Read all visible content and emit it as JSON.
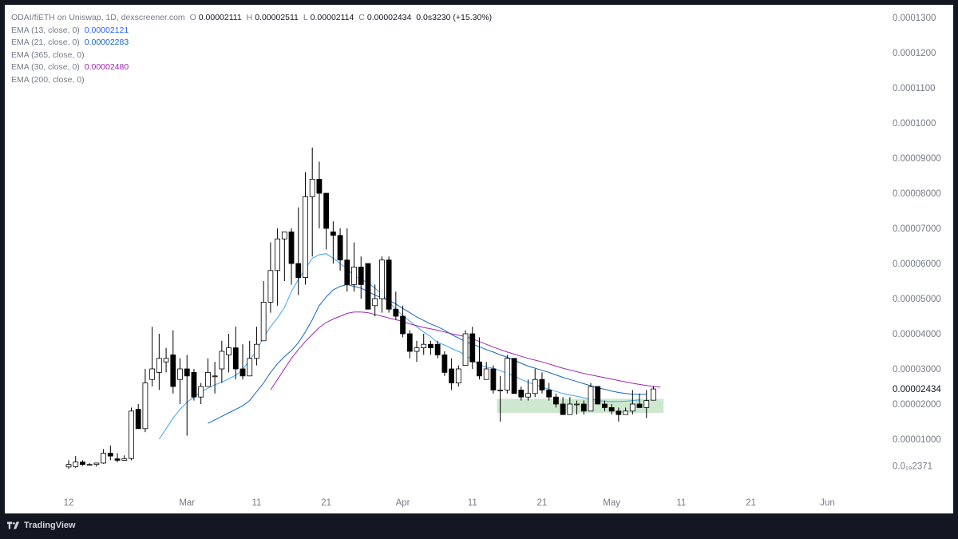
{
  "header": {
    "symbol": "ODAI/fiETH on Uniswap, 1D, dexscreener.com",
    "ohlc": [
      {
        "label": "O",
        "value": "0.00002111"
      },
      {
        "label": "H",
        "value": "0.00002511"
      },
      {
        "label": "L",
        "value": "0.00002114"
      },
      {
        "label": "C",
        "value": "0.00002434"
      }
    ],
    "change": "0.0s3230 (+15.30%)"
  },
  "indicators": [
    {
      "label": "EMA (13, close, 0)",
      "value": "0.00002121",
      "color": "#42a5f5"
    },
    {
      "label": "EMA (21, close, 0)",
      "value": "0.00002283",
      "color": "#1565c0"
    },
    {
      "label": "EMA (365, close, 0)",
      "value": ""
    },
    {
      "label": "EMA (30, close, 0)",
      "value": "0.00002480",
      "color": "#9c27b0"
    },
    {
      "label": "EMA (200, close, 0)",
      "value": ""
    }
  ],
  "colors": {
    "up": "#ffffff",
    "down": "#000000",
    "outline": "#000000",
    "highlight": "#c8e6c9",
    "background": "#ffffff",
    "frame": "#131722"
  },
  "footer": {
    "brand": "TradingView"
  },
  "chart_data": {
    "type": "candlestick",
    "y_axis": {
      "ticks": [
        {
          "value": 0.00013,
          "label": "0.0001300"
        },
        {
          "value": 0.00012,
          "label": "0.0001200"
        },
        {
          "value": 0.00011,
          "label": "0.0001100"
        },
        {
          "value": 0.0001,
          "label": "0.0001000"
        },
        {
          "value": 9e-05,
          "label": "0.00009000"
        },
        {
          "value": 8e-05,
          "label": "0.00008000"
        },
        {
          "value": 7e-05,
          "label": "0.00007000"
        },
        {
          "value": 6e-05,
          "label": "0.00006000"
        },
        {
          "value": 5e-05,
          "label": "0.00005000"
        },
        {
          "value": 4e-05,
          "label": "0.00004000"
        },
        {
          "value": 3e-05,
          "label": "0.00003000"
        },
        {
          "value": 2e-05,
          "label": "0.00002000"
        },
        {
          "value": 1e-05,
          "label": "0.00001000"
        },
        {
          "value": 2.371e-06,
          "label": "0.0₁₉2371"
        }
      ],
      "last_price": {
        "value": 2.434e-05,
        "label": "0.00002434"
      }
    },
    "x_axis": {
      "ticks": [
        {
          "label": "12",
          "day": 0
        },
        {
          "label": "Mar",
          "day": 17
        },
        {
          "label": "11",
          "day": 27
        },
        {
          "label": "21",
          "day": 37
        },
        {
          "label": "Apr",
          "day": 48
        },
        {
          "label": "11",
          "day": 58
        },
        {
          "label": "21",
          "day": 68
        },
        {
          "label": "May",
          "day": 78
        },
        {
          "label": "11",
          "day": 88
        },
        {
          "label": "21",
          "day": 98
        },
        {
          "label": "Jun",
          "day": 109
        }
      ]
    },
    "candles": [
      {
        "o": 2.1e-06,
        "h": 4e-06,
        "l": 1.6e-06,
        "c": 2.8e-06
      },
      {
        "o": 2.2e-06,
        "h": 5.2e-06,
        "l": 1.8e-06,
        "c": 3.5e-06
      },
      {
        "o": 3.5e-06,
        "h": 4e-06,
        "l": 2.4e-06,
        "c": 2.8e-06
      },
      {
        "o": 2.7e-06,
        "h": 3.2e-06,
        "l": 2.6e-06,
        "c": 2.8e-06
      },
      {
        "o": 2.8e-06,
        "h": 3.3e-06,
        "l": 2.2e-06,
        "c": 3.2e-06
      },
      {
        "o": 3.2e-06,
        "h": 7.2e-06,
        "l": 3e-06,
        "c": 6e-06
      },
      {
        "o": 6e-06,
        "h": 8.2e-06,
        "l": 4e-06,
        "c": 5.2e-06
      },
      {
        "o": 4.4e-06,
        "h": 6e-06,
        "l": 3.4e-06,
        "c": 4e-06
      },
      {
        "o": 4e-06,
        "h": 5.4e-06,
        "l": 4e-06,
        "c": 4.4e-06
      },
      {
        "o": 4.5e-06,
        "h": 1.9e-05,
        "l": 4e-06,
        "c": 1.8e-05
      },
      {
        "o": 1.85e-05,
        "h": 2e-05,
        "l": 1.3e-05,
        "c": 1.3e-05
      },
      {
        "o": 1.3e-05,
        "h": 3e-05,
        "l": 1.2e-05,
        "c": 2.6e-05
      },
      {
        "o": 2.7e-05,
        "h": 4.2e-05,
        "l": 2.5e-05,
        "c": 3e-05
      },
      {
        "o": 2.9e-05,
        "h": 4e-05,
        "l": 2.4e-05,
        "c": 3.3e-05
      },
      {
        "o": 3.2e-05,
        "h": 3.6e-05,
        "l": 2.9e-05,
        "c": 3.3e-05
      },
      {
        "o": 3.4e-05,
        "h": 4.1e-05,
        "l": 2.3e-05,
        "c": 2.5e-05
      },
      {
        "o": 2.7e-05,
        "h": 3.3e-05,
        "l": 2e-05,
        "c": 3e-05
      },
      {
        "o": 3e-05,
        "h": 3.4e-05,
        "l": 1.1e-05,
        "c": 2.8e-05
      },
      {
        "o": 2.9e-05,
        "h": 3e-05,
        "l": 2.1e-05,
        "c": 2.2e-05
      },
      {
        "o": 2.2e-05,
        "h": 2.6e-05,
        "l": 2e-05,
        "c": 2.5e-05
      },
      {
        "o": 2.5e-05,
        "h": 3.3e-05,
        "l": 2.5e-05,
        "c": 2.9e-05
      },
      {
        "o": 2.8e-05,
        "h": 3.2e-05,
        "l": 2.3e-05,
        "c": 2.8e-05
      },
      {
        "o": 3e-05,
        "h": 3.8e-05,
        "l": 2.6e-05,
        "c": 3.5e-05
      },
      {
        "o": 3.4e-05,
        "h": 4e-05,
        "l": 2.9e-05,
        "c": 3.6e-05
      },
      {
        "o": 3.6e-05,
        "h": 4.2e-05,
        "l": 2.7e-05,
        "c": 3e-05
      },
      {
        "o": 3e-05,
        "h": 3.7e-05,
        "l": 2.7e-05,
        "c": 2.8e-05
      },
      {
        "o": 2.8e-05,
        "h": 3.8e-05,
        "l": 2.8e-05,
        "c": 3.3e-05
      },
      {
        "o": 3.3e-05,
        "h": 4.2e-05,
        "l": 3.1e-05,
        "c": 3.7e-05
      },
      {
        "o": 3.8e-05,
        "h": 5.5e-05,
        "l": 3.8e-05,
        "c": 4.9e-05
      },
      {
        "o": 4.9e-05,
        "h": 6.6e-05,
        "l": 4.6e-05,
        "c": 5.8e-05
      },
      {
        "o": 5.8e-05,
        "h": 7e-05,
        "l": 4.8e-05,
        "c": 6.7e-05
      },
      {
        "o": 6.7e-05,
        "h": 6.9e-05,
        "l": 5.5e-05,
        "c": 6.9e-05
      },
      {
        "o": 6.9e-05,
        "h": 7e-05,
        "l": 5.4e-05,
        "c": 6e-05
      },
      {
        "o": 6e-05,
        "h": 7.6e-05,
        "l": 5.1e-05,
        "c": 5.6e-05
      },
      {
        "o": 5.6e-05,
        "h": 8.6e-05,
        "l": 5.4e-05,
        "c": 7.9e-05
      },
      {
        "o": 7.9e-05,
        "h": 9.3e-05,
        "l": 6.2e-05,
        "c": 8.4e-05
      },
      {
        "o": 8.4e-05,
        "h": 8.9e-05,
        "l": 7e-05,
        "c": 8e-05
      },
      {
        "o": 8e-05,
        "h": 8e-05,
        "l": 6.4e-05,
        "c": 7e-05
      },
      {
        "o": 6.9e-05,
        "h": 7.2e-05,
        "l": 6e-05,
        "c": 6.8e-05
      },
      {
        "o": 6.8e-05,
        "h": 7e-05,
        "l": 5.8e-05,
        "c": 6.1e-05
      },
      {
        "o": 6.1e-05,
        "h": 7e-05,
        "l": 5.2e-05,
        "c": 5.4e-05
      },
      {
        "o": 5.4e-05,
        "h": 6.6e-05,
        "l": 5.2e-05,
        "c": 5.9e-05
      },
      {
        "o": 5.9e-05,
        "h": 6.2e-05,
        "l": 5e-05,
        "c": 5.4e-05
      },
      {
        "o": 6e-05,
        "h": 6e-05,
        "l": 4.7e-05,
        "c": 4.7e-05
      },
      {
        "o": 4.8e-05,
        "h": 5.4e-05,
        "l": 4.5e-05,
        "c": 5e-05
      },
      {
        "o": 5e-05,
        "h": 6.2e-05,
        "l": 4.6e-05,
        "c": 6.1e-05
      },
      {
        "o": 6.1e-05,
        "h": 6.2e-05,
        "l": 4.6e-05,
        "c": 4.7e-05
      },
      {
        "o": 4.7e-05,
        "h": 5.2e-05,
        "l": 4.4e-05,
        "c": 4.5e-05
      },
      {
        "o": 4.5e-05,
        "h": 4.8e-05,
        "l": 3.9e-05,
        "c": 4e-05
      },
      {
        "o": 4e-05,
        "h": 4.1e-05,
        "l": 3.3e-05,
        "c": 3.5e-05
      },
      {
        "o": 3.5e-05,
        "h": 3.8e-05,
        "l": 3.2e-05,
        "c": 3.6e-05
      },
      {
        "o": 3.6e-05,
        "h": 4e-05,
        "l": 3.4e-05,
        "c": 3.7e-05
      },
      {
        "o": 3.7e-05,
        "h": 3.8e-05,
        "l": 3.4e-05,
        "c": 3.6e-05
      },
      {
        "o": 3.7e-05,
        "h": 3.8e-05,
        "l": 3.3e-05,
        "c": 3.4e-05
      },
      {
        "o": 3.4e-05,
        "h": 3.5e-05,
        "l": 2.8e-05,
        "c": 2.9e-05
      },
      {
        "o": 3e-05,
        "h": 3.3e-05,
        "l": 2.4e-05,
        "c": 2.6e-05
      },
      {
        "o": 2.6e-05,
        "h": 3.1e-05,
        "l": 2.5e-05,
        "c": 3e-05
      },
      {
        "o": 3.1e-05,
        "h": 4.1e-05,
        "l": 3.1e-05,
        "c": 4e-05
      },
      {
        "o": 4e-05,
        "h": 4.2e-05,
        "l": 3e-05,
        "c": 3.2e-05
      },
      {
        "o": 3.2e-05,
        "h": 3.9e-05,
        "l": 2.7e-05,
        "c": 2.8e-05
      },
      {
        "o": 2.7e-05,
        "h": 3.2e-05,
        "l": 2.7e-05,
        "c": 3e-05
      },
      {
        "o": 3e-05,
        "h": 3.1e-05,
        "l": 2.3e-05,
        "c": 2.4e-05
      },
      {
        "o": 2.4e-05,
        "h": 2.8e-05,
        "l": 1.5e-05,
        "c": 2.4e-05
      },
      {
        "o": 2.4e-05,
        "h": 3.4e-05,
        "l": 2.3e-05,
        "c": 3.3e-05
      },
      {
        "o": 3.3e-05,
        "h": 3.3e-05,
        "l": 2.3e-05,
        "c": 2.3e-05
      },
      {
        "o": 2.4e-05,
        "h": 2.5e-05,
        "l": 2.1e-05,
        "c": 2.2e-05
      },
      {
        "o": 2.2e-05,
        "h": 2.7e-05,
        "l": 2.1e-05,
        "c": 2.3e-05
      },
      {
        "o": 2.3e-05,
        "h": 3e-05,
        "l": 2.2e-05,
        "c": 2.7e-05
      },
      {
        "o": 2.7e-05,
        "h": 2.9e-05,
        "l": 2.3e-05,
        "c": 2.4e-05
      },
      {
        "o": 2.4e-05,
        "h": 2.6e-05,
        "l": 2.1e-05,
        "c": 2.2e-05
      },
      {
        "o": 2.2e-05,
        "h": 2.3e-05,
        "l": 1.9e-05,
        "c": 2e-05
      },
      {
        "o": 2e-05,
        "h": 2.2e-05,
        "l": 1.7e-05,
        "c": 1.7e-05
      },
      {
        "o": 1.7e-05,
        "h": 2.2e-05,
        "l": 1.7e-05,
        "c": 2e-05
      },
      {
        "o": 2e-05,
        "h": 2.1e-05,
        "l": 1.7e-05,
        "c": 2e-05
      },
      {
        "o": 2e-05,
        "h": 2.1e-05,
        "l": 1.7e-05,
        "c": 1.8e-05
      },
      {
        "o": 1.8e-05,
        "h": 2.6e-05,
        "l": 1.8e-05,
        "c": 2.5e-05
      },
      {
        "o": 2.5e-05,
        "h": 2.5e-05,
        "l": 2e-05,
        "c": 2e-05
      },
      {
        "o": 2e-05,
        "h": 2.1e-05,
        "l": 1.8e-05,
        "c": 1.9e-05
      },
      {
        "o": 1.9e-05,
        "h": 2e-05,
        "l": 1.7e-05,
        "c": 1.8e-05
      },
      {
        "o": 1.8e-05,
        "h": 1.9e-05,
        "l": 1.5e-05,
        "c": 1.7e-05
      },
      {
        "o": 1.7e-05,
        "h": 1.9e-05,
        "l": 1.7e-05,
        "c": 1.8e-05
      },
      {
        "o": 1.8e-05,
        "h": 2.4e-05,
        "l": 1.7e-05,
        "c": 2e-05
      },
      {
        "o": 2e-05,
        "h": 2.3e-05,
        "l": 1.9e-05,
        "c": 1.9e-05
      },
      {
        "o": 1.9e-05,
        "h": 2.4e-05,
        "l": 1.6e-05,
        "c": 2.1e-05
      },
      {
        "o": 2.11e-05,
        "h": 2.51e-05,
        "l": 2.11e-05,
        "c": 2.43e-05
      }
    ],
    "ema": [
      {
        "name": "EMA (13, close, 0)",
        "color": "#42a5f5",
        "start": 13,
        "values": [
          1e-05,
          1.3e-05,
          1.6e-05,
          1.85e-05,
          2.05e-05,
          2.2e-05,
          2.35e-05,
          2.45e-05,
          2.55e-05,
          2.62e-05,
          2.72e-05,
          2.82e-05,
          2.98e-05,
          3.25e-05,
          3.52e-05,
          3.9e-05,
          4.2e-05,
          4.45e-05,
          4.75e-05,
          5.2e-05,
          5.55e-05,
          5.85e-05,
          6.15e-05,
          6.25e-05,
          6.28e-05,
          6.15e-05,
          6e-05,
          5.85e-05,
          5.65e-05,
          5.55e-05,
          5.45e-05,
          5.3e-05,
          5.12e-05,
          4.9e-05,
          4.7e-05,
          4.52e-05,
          4.36e-05,
          4.2e-05,
          4.05e-05,
          3.92e-05,
          3.75e-05,
          3.68e-05,
          3.58e-05,
          3.5e-05,
          3.4e-05,
          3.25e-05,
          3.12e-05,
          3.05e-05,
          3.02e-05,
          2.95e-05,
          2.87e-05,
          2.8e-05,
          2.7e-05,
          2.62e-05,
          2.55e-05,
          2.48e-05,
          2.42e-05,
          2.36e-05,
          2.3e-05,
          2.26e-05,
          2.22e-05,
          2.18e-05,
          2.14e-05,
          2.1e-05,
          2.08e-05,
          2.07e-05,
          2.07e-05,
          2.08e-05,
          2.1e-05,
          2.12e-05
        ]
      },
      {
        "name": "EMA (21, close, 0)",
        "color": "#1565c0",
        "start": 20,
        "values": [
          1.45e-05,
          1.55e-05,
          1.65e-05,
          1.75e-05,
          1.85e-05,
          1.95e-05,
          2.1e-05,
          2.35e-05,
          2.6e-05,
          2.9e-05,
          3.15e-05,
          3.35e-05,
          3.52e-05,
          3.75e-05,
          4.05e-05,
          4.4e-05,
          4.8e-05,
          5.05e-05,
          5.25e-05,
          5.35e-05,
          5.4e-05,
          5.35e-05,
          5.3e-05,
          5.2e-05,
          5.1e-05,
          5.02e-05,
          4.95e-05,
          4.85e-05,
          4.72e-05,
          4.6e-05,
          4.48e-05,
          4.38e-05,
          4.28e-05,
          4.2e-05,
          4.1e-05,
          3.98e-05,
          3.88e-05,
          3.78e-05,
          3.7e-05,
          3.63e-05,
          3.55e-05,
          3.48e-05,
          3.4e-05,
          3.33e-05,
          3.25e-05,
          3.16e-05,
          3.08e-05,
          3.02e-05,
          2.96e-05,
          2.9e-05,
          2.83e-05,
          2.76e-05,
          2.7e-05,
          2.64e-05,
          2.58e-05,
          2.52e-05,
          2.46e-05,
          2.42e-05,
          2.37e-05,
          2.33e-05,
          2.3e-05,
          2.28e-05,
          2.28e-05,
          2.28e-05
        ]
      },
      {
        "name": "EMA (30, close, 0)",
        "color": "#9c27b0",
        "start": 29,
        "values": [
          2.4e-05,
          2.7e-05,
          3e-05,
          3.3e-05,
          3.55e-05,
          3.78e-05,
          3.98e-05,
          4.18e-05,
          4.32e-05,
          4.42e-05,
          4.5e-05,
          4.58e-05,
          4.62e-05,
          4.62e-05,
          4.6e-05,
          4.55e-05,
          4.5e-05,
          4.45e-05,
          4.4e-05,
          4.35e-05,
          4.28e-05,
          4.23e-05,
          4.18e-05,
          4.14e-05,
          4.1e-05,
          4.05e-05,
          4e-05,
          3.96e-05,
          3.92e-05,
          3.86e-05,
          3.78e-05,
          3.7e-05,
          3.62e-05,
          3.55e-05,
          3.48e-05,
          3.42e-05,
          3.36e-05,
          3.3e-05,
          3.25e-05,
          3.2e-05,
          3.14e-05,
          3.08e-05,
          3.02e-05,
          2.97e-05,
          2.92e-05,
          2.87e-05,
          2.83e-05,
          2.79e-05,
          2.75e-05,
          2.71e-05,
          2.67e-05,
          2.63e-05,
          2.59e-05,
          2.56e-05,
          2.53e-05,
          2.5e-05,
          2.48e-05
        ]
      }
    ],
    "highlight_zone": {
      "start": 62,
      "end": 85,
      "low": 1.75e-05,
      "high": 2.15e-05
    }
  }
}
